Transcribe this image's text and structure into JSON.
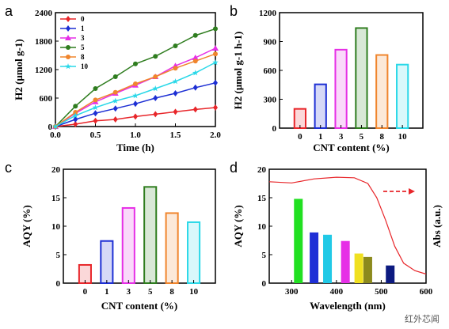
{
  "panels": {
    "a": {
      "letter": "a",
      "chart_data": {
        "type": "line",
        "xlabel": "Time (h)",
        "ylabel": "H2 (μmol g-1)",
        "xlim": [
          0,
          2.0
        ],
        "ylim": [
          0,
          2400
        ],
        "xticks": [
          "0.0",
          "0.5",
          "1.0",
          "1.5",
          "2.0"
        ],
        "yticks": [
          "0",
          "600",
          "1200",
          "1800",
          "2400"
        ],
        "x": [
          0,
          0.25,
          0.5,
          0.75,
          1.0,
          1.25,
          1.5,
          1.75,
          2.0
        ],
        "legend_placement": "top-left",
        "series": [
          {
            "name": "0",
            "color": "#e8262a",
            "marker": "diamond",
            "values": [
              0,
              50,
              120,
              150,
              210,
              260,
              310,
              360,
              400
            ]
          },
          {
            "name": "1",
            "color": "#1d2fd4",
            "marker": "diamond",
            "values": [
              0,
              150,
              280,
              380,
              480,
              600,
              700,
              820,
              920
            ]
          },
          {
            "name": "3",
            "color": "#e62fe6",
            "marker": "triangle",
            "values": [
              0,
              280,
              520,
              700,
              870,
              1050,
              1280,
              1450,
              1650
            ]
          },
          {
            "name": "5",
            "color": "#2f7d1f",
            "marker": "circle",
            "values": [
              0,
              430,
              800,
              1050,
              1320,
              1480,
              1700,
              1920,
              2060
            ]
          },
          {
            "name": "8",
            "color": "#f0852d",
            "marker": "circle",
            "values": [
              0,
              300,
              560,
              720,
              900,
              1050,
              1230,
              1380,
              1530
            ]
          },
          {
            "name": "10",
            "color": "#2ad8e8",
            "marker": "star",
            "values": [
              0,
              230,
              400,
              540,
              650,
              800,
              950,
              1130,
              1350
            ]
          }
        ]
      }
    },
    "b": {
      "letter": "b",
      "chart_data": {
        "type": "bar",
        "xlabel": "CNT content (%)",
        "ylabel": "H2 (μmol g-1 h-1)",
        "ylim": [
          0,
          1200
        ],
        "yticks": [
          "0",
          "300",
          "600",
          "900",
          "1200"
        ],
        "categories": [
          "0",
          "1",
          "3",
          "5",
          "8",
          "10"
        ],
        "values": [
          200,
          455,
          815,
          1040,
          760,
          660
        ],
        "colors": [
          "#e8262a",
          "#1d2fd4",
          "#e62fe6",
          "#2f7d1f",
          "#f0852d",
          "#2ad8e8"
        ]
      }
    },
    "c": {
      "letter": "c",
      "chart_data": {
        "type": "bar",
        "xlabel": "CNT content (%)",
        "ylabel": "AQY (%)",
        "ylim": [
          0,
          20
        ],
        "yticks": [
          "0",
          "5",
          "10",
          "15",
          "20"
        ],
        "categories": [
          "0",
          "1",
          "3",
          "5",
          "8",
          "10"
        ],
        "values": [
          3.2,
          7.4,
          13.2,
          16.9,
          12.3,
          10.7
        ],
        "colors": [
          "#e8262a",
          "#1d2fd4",
          "#e62fe6",
          "#2f7d1f",
          "#f0852d",
          "#2ad8e8"
        ]
      }
    },
    "d": {
      "letter": "d",
      "chart_data": {
        "type": "bar",
        "xlabel": "Wavelength (nm)",
        "ylabel": "AQY (%)",
        "ylabel_right": "Abs (a.u.)",
        "xlim": [
          250,
          600
        ],
        "ylim": [
          0,
          20
        ],
        "xticks": [
          "300",
          "400",
          "500",
          "600"
        ],
        "yticks": [
          "0",
          "5",
          "10",
          "15",
          "20"
        ],
        "bars": [
          {
            "x": 315,
            "value": 14.8,
            "color": "#21e021"
          },
          {
            "x": 350,
            "value": 8.9,
            "color": "#1f2fd6"
          },
          {
            "x": 380,
            "value": 8.5,
            "color": "#21c9e6"
          },
          {
            "x": 420,
            "value": 7.4,
            "color": "#e62fe6"
          },
          {
            "x": 450,
            "value": 5.2,
            "color": "#f0e020"
          },
          {
            "x": 470,
            "value": 4.6,
            "color": "#8c8a1d"
          },
          {
            "x": 520,
            "value": 3.1,
            "color": "#0c1a80"
          }
        ],
        "abs_curve": {
          "color": "#e8262a",
          "points": [
            [
              250,
              17.8
            ],
            [
              300,
              17.6
            ],
            [
              350,
              18.3
            ],
            [
              400,
              18.6
            ],
            [
              440,
              18.5
            ],
            [
              470,
              17.5
            ],
            [
              490,
              15.0
            ],
            [
              510,
              11.0
            ],
            [
              530,
              6.5
            ],
            [
              550,
              3.5
            ],
            [
              575,
              2.2
            ],
            [
              600,
              1.6
            ]
          ]
        },
        "arrow": {
          "color": "#e8262a",
          "direction": "right",
          "style": "dashed"
        }
      }
    }
  },
  "watermark": "红外芯闻"
}
